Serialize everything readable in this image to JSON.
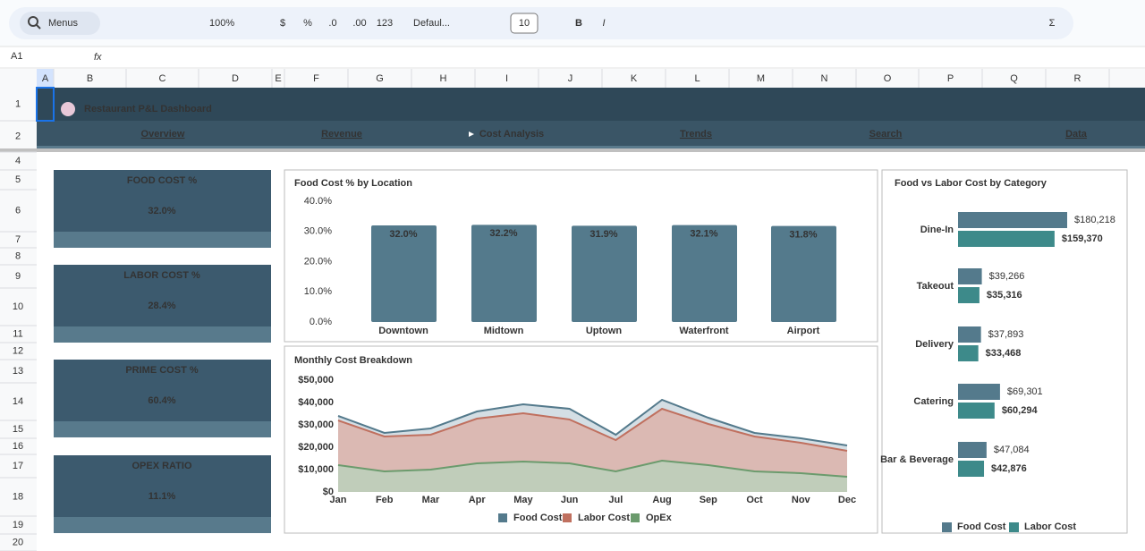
{
  "toolbar": {
    "menus": "Menus",
    "zoom": "100%",
    "currency": "$",
    "percent": "%",
    "decrease_decimals": ".0",
    "increase_decimals": ".00",
    "number_format": "123",
    "font": "Defaul...",
    "font_size": "10",
    "bold": "B",
    "italic": "I",
    "sum": "Σ"
  },
  "formula_bar": {
    "cell": "A1",
    "fx": "fx"
  },
  "columns": [
    "A",
    "B",
    "C",
    "D",
    "E",
    "F",
    "G",
    "H",
    "I",
    "J",
    "K",
    "L",
    "M",
    "N",
    "O",
    "P",
    "Q",
    "R"
  ],
  "rows": [
    1,
    2,
    4,
    5,
    6,
    7,
    8,
    9,
    10,
    11,
    12,
    13,
    14,
    15,
    16,
    17,
    18,
    19,
    20
  ],
  "dashboard": {
    "title": "Restaurant P&L Dashboard",
    "nav": [
      "Overview",
      "Revenue",
      "Cost Analysis",
      "Trends",
      "Search",
      "Data"
    ],
    "kpis": [
      {
        "label": "FOOD COST %",
        "value": "32.0%"
      },
      {
        "label": "LABOR COST %",
        "value": "28.4%"
      },
      {
        "label": "PRIME COST %",
        "value": "60.4%"
      },
      {
        "label": "OPEX RATIO",
        "value": "11.1%"
      }
    ]
  },
  "chart_data": [
    {
      "type": "bar",
      "title": "Food Cost % by Location",
      "categories": [
        "Downtown",
        "Midtown",
        "Uptown",
        "Waterfront",
        "Airport"
      ],
      "values": [
        32.0,
        32.2,
        31.9,
        32.1,
        31.8
      ],
      "value_labels": [
        "32.0%",
        "32.2%",
        "31.9%",
        "32.1%",
        "31.8%"
      ],
      "color": "#547a8c",
      "ylim": [
        0,
        40
      ],
      "yticks": [
        {
          "value": 0,
          "label": "0.0%"
        },
        {
          "value": 10,
          "label": "10.0%"
        },
        {
          "value": 20,
          "label": "20.0%"
        },
        {
          "value": 30,
          "label": "30.0%"
        },
        {
          "value": 40,
          "label": "40.0%"
        }
      ]
    },
    {
      "type": "area",
      "title": "Monthly Cost Breakdown",
      "categories": [
        "Jan",
        "Feb",
        "Mar",
        "Apr",
        "May",
        "Jun",
        "Jul",
        "Aug",
        "Sep",
        "Oct",
        "Nov",
        "Dec"
      ],
      "ylim": [
        0,
        50000
      ],
      "yticks": [
        {
          "value": 0,
          "label": "$0"
        },
        {
          "value": 10000,
          "label": "$10,000"
        },
        {
          "value": 20000,
          "label": "$20,000"
        },
        {
          "value": 30000,
          "label": "$30,000"
        },
        {
          "value": 40000,
          "label": "$40,000"
        },
        {
          "value": 50000,
          "label": "$50,000"
        }
      ],
      "series": [
        {
          "name": "Food Cost",
          "color": "#547a8c",
          "values": [
            34000,
            26400,
            28400,
            36000,
            39200,
            37200,
            25600,
            41200,
            33200,
            26400,
            24000,
            20800
          ]
        },
        {
          "name": "Labor Cost",
          "color": "#c0705f",
          "values": [
            32000,
            24800,
            25600,
            32800,
            35200,
            32400,
            23200,
            37200,
            30400,
            24800,
            22000,
            18400
          ]
        },
        {
          "name": "OpEx",
          "color": "#6b9b6d",
          "values": [
            12000,
            9200,
            10000,
            12800,
            13600,
            12800,
            9200,
            14000,
            12000,
            9200,
            8400,
            6800
          ]
        }
      ]
    },
    {
      "type": "hbar",
      "title": "Food vs Labor Cost by Category",
      "categories": [
        "Dine-In",
        "Takeout",
        "Delivery",
        "Catering",
        "Bar & Beverage"
      ],
      "series": [
        {
          "name": "Food Cost",
          "color": "#547a8c",
          "values": [
            180218,
            39266,
            37893,
            69301,
            47084
          ],
          "value_labels": [
            "$180,218",
            "$39,266",
            "$37,893",
            "$69,301",
            "$47,084"
          ]
        },
        {
          "name": "Labor Cost",
          "color": "#3d8a8a",
          "values": [
            159370,
            35316,
            33468,
            60294,
            42876
          ],
          "value_labels": [
            "$159,370",
            "$35,316",
            "$33,468",
            "$60,294",
            "$42,876"
          ]
        }
      ]
    }
  ]
}
